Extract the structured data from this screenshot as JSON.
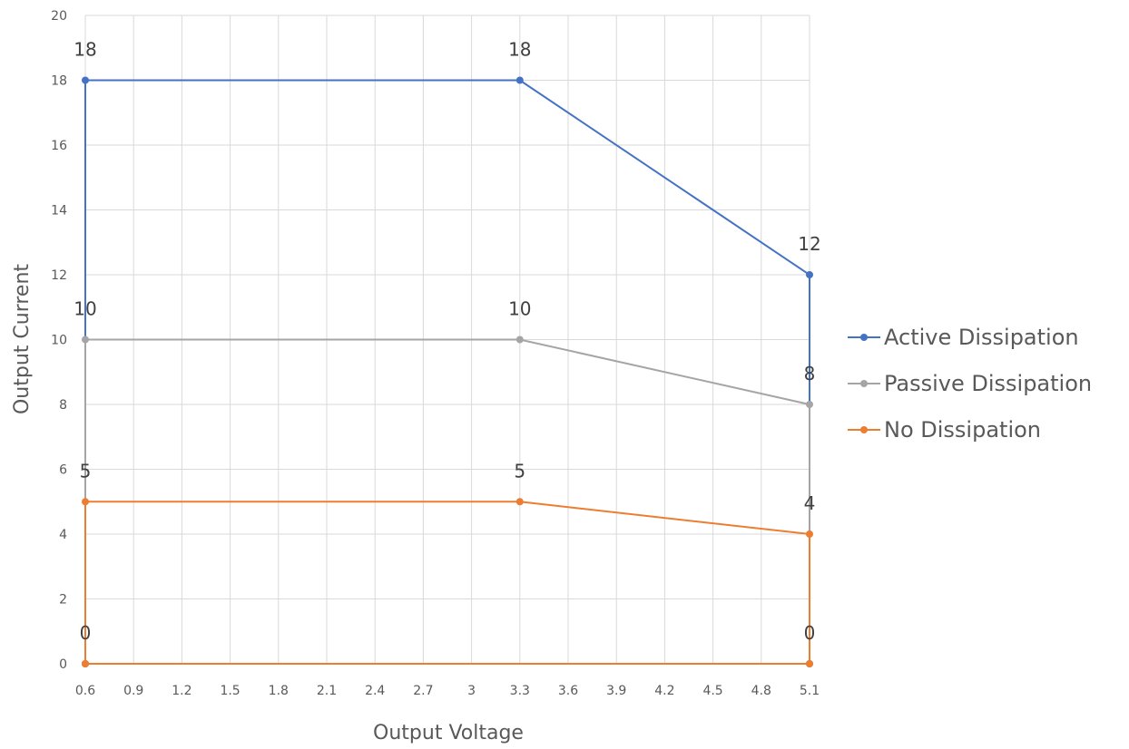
{
  "chart_data": {
    "type": "line",
    "xlabel": "Output Voltage",
    "ylabel": "Output Current",
    "x_ticks": [
      "0.6",
      "0.9",
      "1.2",
      "1.5",
      "1.8",
      "2.1",
      "2.4",
      "2.7",
      "3",
      "3.3",
      "3.6",
      "3.9",
      "4.2",
      "4.5",
      "4.8",
      "5.1"
    ],
    "xlim": [
      0.6,
      5.1
    ],
    "ylim": [
      0,
      20
    ],
    "y_ticks": [
      0,
      2,
      4,
      6,
      8,
      10,
      12,
      14,
      16,
      18,
      20
    ],
    "grid": true,
    "legend_position": "right",
    "series": [
      {
        "name": "Active Dissipation",
        "color": "#4472c4",
        "points": [
          [
            0.6,
            0
          ],
          [
            0.6,
            18
          ],
          [
            3.3,
            18
          ],
          [
            5.1,
            12
          ],
          [
            5.1,
            0
          ]
        ],
        "data_labels": [
          {
            "x": 0.6,
            "y": 18,
            "label": "18"
          },
          {
            "x": 3.3,
            "y": 18,
            "label": "18"
          },
          {
            "x": 5.1,
            "y": 12,
            "label": "12"
          }
        ]
      },
      {
        "name": "Passive Dissipation",
        "color": "#a5a5a5",
        "points": [
          [
            0.6,
            0
          ],
          [
            0.6,
            10
          ],
          [
            3.3,
            10
          ],
          [
            5.1,
            8
          ],
          [
            5.1,
            0
          ]
        ],
        "data_labels": [
          {
            "x": 0.6,
            "y": 10,
            "label": "10"
          },
          {
            "x": 3.3,
            "y": 10,
            "label": "10"
          },
          {
            "x": 5.1,
            "y": 8,
            "label": "8"
          }
        ]
      },
      {
        "name": "No Dissipation",
        "color": "#ed7d31",
        "points": [
          [
            0.6,
            0
          ],
          [
            0.6,
            5
          ],
          [
            3.3,
            5
          ],
          [
            5.1,
            4
          ],
          [
            5.1,
            0
          ],
          [
            0.6,
            0
          ]
        ],
        "data_labels": [
          {
            "x": 0.6,
            "y": 5,
            "label": "5"
          },
          {
            "x": 3.3,
            "y": 5,
            "label": "5"
          },
          {
            "x": 5.1,
            "y": 4,
            "label": "4"
          },
          {
            "x": 0.6,
            "y": 0,
            "label": "0"
          },
          {
            "x": 5.1,
            "y": 0,
            "label": "0"
          }
        ]
      }
    ]
  }
}
